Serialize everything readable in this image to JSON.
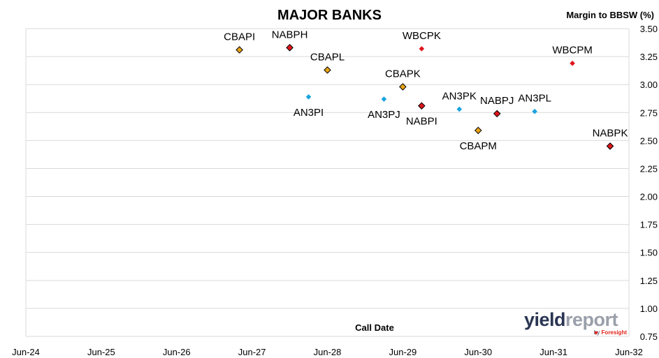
{
  "chart_data": {
    "type": "scatter",
    "title": "MAJOR BANKS",
    "ylabel": "Margin to BBSW (%)",
    "xlabel": "Call Date",
    "x_ticks": [
      "Jun-24",
      "Jun-25",
      "Jun-26",
      "Jun-27",
      "Jun-28",
      "Jun-29",
      "Jun-30",
      "Jun-31",
      "Jun-32"
    ],
    "y_ticks": [
      "0.75",
      "1.00",
      "1.25",
      "1.50",
      "1.75",
      "2.00",
      "2.25",
      "2.50",
      "2.75",
      "3.00",
      "3.25",
      "3.50"
    ],
    "xlim": [
      "2024-06",
      "2032-06"
    ],
    "ylim": [
      0.75,
      3.5
    ],
    "y_axis_position": "right",
    "grid": "horizontal",
    "marker": "diamond",
    "points": [
      {
        "label": "CBAPI",
        "x": "2027-04",
        "y": 3.31,
        "color": "#e8a317",
        "outline": true,
        "label_pos": "above"
      },
      {
        "label": "NABPH",
        "x": "2027-12",
        "y": 3.33,
        "color": "#e0151b",
        "outline": true,
        "label_pos": "above"
      },
      {
        "label": "CBAPL",
        "x": "2028-06",
        "y": 3.13,
        "color": "#e8a317",
        "outline": true,
        "label_pos": "above"
      },
      {
        "label": "AN3PI",
        "x": "2028-03",
        "y": 2.89,
        "color": "#19a3e0",
        "outline": false,
        "label_pos": "below"
      },
      {
        "label": "AN3PJ",
        "x": "2029-03",
        "y": 2.87,
        "color": "#19a3e0",
        "outline": false,
        "label_pos": "below"
      },
      {
        "label": "CBAPK",
        "x": "2029-06",
        "y": 2.98,
        "color": "#e8a317",
        "outline": true,
        "label_pos": "above"
      },
      {
        "label": "WBCPK",
        "x": "2029-09",
        "y": 3.32,
        "color": "#e0151b",
        "outline": false,
        "label_pos": "above"
      },
      {
        "label": "NABPI",
        "x": "2029-09",
        "y": 2.81,
        "color": "#e0151b",
        "outline": true,
        "label_pos": "below"
      },
      {
        "label": "AN3PK",
        "x": "2030-03",
        "y": 2.78,
        "color": "#19a3e0",
        "outline": false,
        "label_pos": "above"
      },
      {
        "label": "CBAPM",
        "x": "2030-06",
        "y": 2.59,
        "color": "#e8a317",
        "outline": true,
        "label_pos": "below"
      },
      {
        "label": "NABPJ",
        "x": "2030-09",
        "y": 2.74,
        "color": "#e0151b",
        "outline": true,
        "label_pos": "above"
      },
      {
        "label": "AN3PL",
        "x": "2031-03",
        "y": 2.76,
        "color": "#19a3e0",
        "outline": false,
        "label_pos": "above"
      },
      {
        "label": "WBCPM",
        "x": "2031-09",
        "y": 3.19,
        "color": "#e0151b",
        "outline": false,
        "label_pos": "above"
      },
      {
        "label": "NABPK",
        "x": "2032-03",
        "y": 2.45,
        "color": "#e0151b",
        "outline": true,
        "label_pos": "above"
      }
    ]
  },
  "brand": {
    "part1": "yield",
    "part2": "report",
    "sub_prefix": "by",
    "sub_name": "Foresight"
  }
}
